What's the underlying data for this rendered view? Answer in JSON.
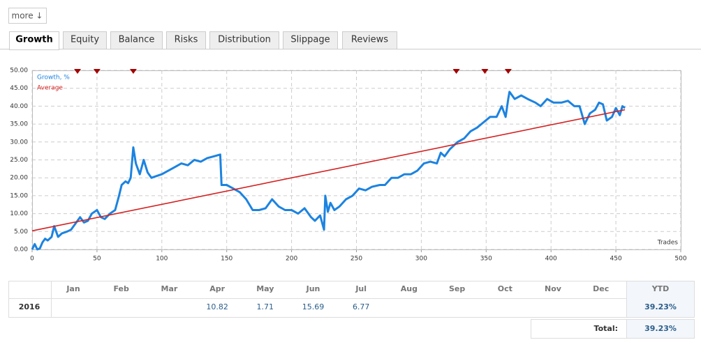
{
  "more": "more ↓",
  "tabs": [
    "Growth",
    "Equity",
    "Balance",
    "Risks",
    "Distribution",
    "Slippage",
    "Reviews"
  ],
  "active_tab": 0,
  "chart_data": {
    "type": "line",
    "xlabel": "Trades",
    "xlim": [
      0,
      500
    ],
    "xticks": [
      0,
      50,
      100,
      150,
      200,
      250,
      300,
      350,
      400,
      450,
      500
    ],
    "ylim": [
      0,
      50
    ],
    "yticks": [
      {
        "value": 0,
        "label": "0.00"
      },
      {
        "value": 5,
        "label": "5.00"
      },
      {
        "value": 10,
        "label": "10.00"
      },
      {
        "value": 15,
        "label": "15.00"
      },
      {
        "value": 20,
        "label": "20.00"
      },
      {
        "value": 25,
        "label": "25.00"
      },
      {
        "value": 30,
        "label": "30.00"
      },
      {
        "value": 35,
        "label": "35.00"
      },
      {
        "value": 40,
        "label": "40.00"
      },
      {
        "value": 45,
        "label": "45.00"
      },
      {
        "value": 50,
        "label": "50.00"
      }
    ],
    "grid": true,
    "legend": "top-left",
    "markers": [
      35,
      50,
      78,
      327,
      349,
      367
    ],
    "marker_color": "#a30000",
    "series": [
      {
        "name": "Growth, %",
        "color": "#1c83e0",
        "x": [
          0,
          2,
          4,
          6,
          8,
          10,
          12,
          15,
          17,
          20,
          23,
          27,
          30,
          33,
          37,
          40,
          43,
          46,
          50,
          53,
          56,
          60,
          64,
          67,
          69,
          72,
          74,
          76,
          78,
          80,
          83,
          86,
          89,
          92,
          96,
          100,
          105,
          110,
          115,
          120,
          125,
          130,
          135,
          140,
          145,
          146,
          150,
          155,
          160,
          165,
          170,
          175,
          180,
          185,
          190,
          195,
          200,
          205,
          210,
          215,
          218,
          222,
          225,
          226,
          228,
          230,
          233,
          237,
          242,
          247,
          252,
          257,
          262,
          268,
          272,
          277,
          282,
          287,
          292,
          297,
          302,
          307,
          312,
          315,
          318,
          322,
          328,
          333,
          338,
          343,
          348,
          353,
          358,
          362,
          365,
          367,
          368,
          372,
          377,
          382,
          388,
          392,
          397,
          402,
          408,
          413,
          418,
          422,
          426,
          430,
          434,
          437,
          440,
          443,
          447,
          450,
          453,
          455,
          457
        ],
        "values": [
          0,
          1.5,
          0,
          0.3,
          2,
          3,
          2.5,
          3.5,
          6.5,
          3.5,
          4.5,
          5,
          5.5,
          7,
          9,
          7.5,
          8,
          10,
          11,
          9,
          8.5,
          10,
          11,
          15,
          18,
          19,
          18.5,
          20,
          28.5,
          24,
          21,
          25,
          21.5,
          20,
          20.5,
          21,
          22,
          23,
          24,
          23.5,
          25,
          24.5,
          25.5,
          26,
          26.5,
          18,
          18,
          17,
          16,
          14,
          11,
          11,
          11.5,
          14,
          12,
          11,
          11,
          10,
          11.5,
          9,
          8,
          9.5,
          5.5,
          15,
          10.5,
          13,
          11,
          12,
          14,
          15,
          17,
          16.5,
          17.5,
          18,
          18,
          20,
          20,
          21,
          21,
          22,
          24,
          24.5,
          24,
          27,
          26,
          28,
          30,
          31,
          33,
          34,
          35.5,
          37,
          37,
          40,
          37,
          42,
          44,
          42,
          43,
          42,
          41,
          40,
          42,
          41,
          41,
          41.5,
          40,
          40,
          35,
          38,
          39,
          41,
          40.5,
          36,
          37,
          39.5,
          37.5,
          40,
          39.5
        ]
      },
      {
        "name": "Average",
        "color": "#d42020",
        "x": [
          0,
          457
        ],
        "values": [
          5.2,
          39
        ]
      }
    ]
  },
  "table": {
    "header": [
      "Jan",
      "Feb",
      "Mar",
      "Apr",
      "May",
      "Jun",
      "Jul",
      "Aug",
      "Sep",
      "Oct",
      "Nov",
      "Dec",
      "YTD"
    ],
    "rows": [
      [
        "2016",
        null,
        null,
        null,
        "10.82",
        "1.71",
        "15.69",
        "6.77",
        null,
        null,
        null,
        null,
        null,
        "39.23%"
      ]
    ],
    "total_label": "Total:",
    "total": "39.23%"
  }
}
